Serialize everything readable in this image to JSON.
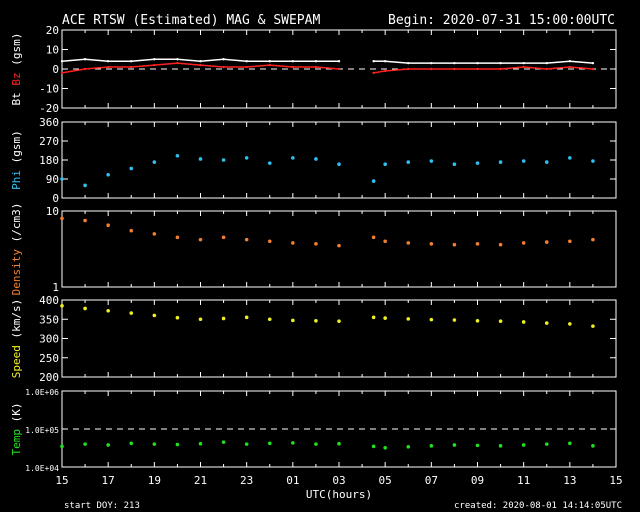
{
  "header": {
    "title": "ACE RTSW (Estimated) MAG & SWEPAM",
    "begin": "Begin: 2020-07-31 15:00:00UTC"
  },
  "footer": {
    "start_doy": "start DOY: 213",
    "created": "created: 2020-08-01 14:14:05UTC",
    "xlabel": "UTC(hours)"
  },
  "colors": {
    "bt": "#ffffff",
    "bz": "#ff2020",
    "phi": "#30c0f0",
    "density": "#f08030",
    "speed": "#f0f020",
    "temp": "#20e020"
  },
  "chart_data": [
    {
      "type": "line",
      "ylabel_parts": [
        "Bt",
        "Bz",
        "(gsm)"
      ],
      "ylim": [
        -20,
        20
      ],
      "yticks": [
        "20",
        "10",
        "0",
        "-10",
        "-20"
      ],
      "dashed_reference": 0,
      "x_hours": [
        0,
        1,
        2,
        3,
        4,
        5,
        6,
        7,
        8,
        9,
        10,
        11,
        12,
        12.5,
        13.5,
        14,
        15,
        16,
        17,
        18,
        19,
        20,
        21,
        22,
        23
      ],
      "series": [
        {
          "name": "Bt",
          "values": [
            4,
            5,
            4,
            4,
            5,
            5,
            4,
            5,
            4,
            4,
            4,
            4,
            4,
            null,
            4,
            4,
            3,
            3,
            3,
            3,
            3,
            3,
            3,
            4,
            3
          ]
        },
        {
          "name": "Bz",
          "values": [
            -2,
            0,
            1,
            1,
            2,
            3,
            2,
            1,
            1,
            2,
            1,
            1,
            0,
            null,
            -2,
            -1,
            0,
            0,
            0,
            0,
            0,
            1,
            0,
            1,
            0
          ]
        }
      ]
    },
    {
      "type": "scatter",
      "ylabel_parts": [
        "Phi",
        "(gsm)"
      ],
      "ylim": [
        0,
        360
      ],
      "yticks": [
        "360",
        "270",
        "180",
        "90",
        "0"
      ],
      "x_hours": [
        0,
        1,
        2,
        3,
        4,
        5,
        6,
        7,
        8,
        9,
        10,
        11,
        12,
        12.5,
        13.5,
        14,
        15,
        16,
        17,
        18,
        19,
        20,
        21,
        22,
        23
      ],
      "series": [
        {
          "name": "Phi",
          "values": [
            90,
            60,
            110,
            140,
            170,
            200,
            185,
            180,
            190,
            165,
            190,
            185,
            160,
            null,
            80,
            160,
            170,
            175,
            160,
            165,
            170,
            175,
            170,
            190,
            175
          ]
        }
      ]
    },
    {
      "type": "scatter",
      "ylabel_parts": [
        "Density",
        "(/cm3)"
      ],
      "scale": "log",
      "ylim": [
        1,
        10
      ],
      "yticks": [
        "10",
        "1"
      ],
      "x_hours": [
        0,
        1,
        2,
        3,
        4,
        5,
        6,
        7,
        8,
        9,
        10,
        11,
        12,
        12.5,
        13.5,
        14,
        15,
        16,
        17,
        18,
        19,
        20,
        21,
        22,
        23
      ],
      "series": [
        {
          "name": "Density",
          "values": [
            8,
            7.5,
            6.5,
            5.5,
            5,
            4.5,
            4.2,
            4.5,
            4.2,
            4,
            3.8,
            3.7,
            3.5,
            null,
            4.5,
            4,
            3.8,
            3.7,
            3.6,
            3.7,
            3.6,
            3.8,
            3.9,
            4,
            4.2
          ]
        }
      ]
    },
    {
      "type": "scatter",
      "ylabel_parts": [
        "Speed",
        "(km/s)"
      ],
      "ylim": [
        200,
        400
      ],
      "yticks": [
        "400",
        "350",
        "300",
        "250",
        "200"
      ],
      "x_hours": [
        0,
        1,
        2,
        3,
        4,
        5,
        6,
        7,
        8,
        9,
        10,
        11,
        12,
        12.5,
        13.5,
        14,
        15,
        16,
        17,
        18,
        19,
        20,
        21,
        22,
        23
      ],
      "series": [
        {
          "name": "Speed",
          "values": [
            385,
            378,
            372,
            366,
            360,
            354,
            350,
            352,
            355,
            350,
            347,
            346,
            345,
            null,
            355,
            353,
            351,
            349,
            348,
            346,
            345,
            343,
            340,
            338,
            332
          ]
        }
      ]
    },
    {
      "type": "scatter",
      "ylabel_parts": [
        "Temp",
        "(K)"
      ],
      "scale": "log",
      "ylim": [
        10000,
        1000000
      ],
      "yticks": [
        "1.0E+06",
        "1.0E+05",
        "1.0E+04"
      ],
      "dashed_reference": 100000,
      "x_hours": [
        0,
        1,
        2,
        3,
        4,
        5,
        6,
        7,
        8,
        9,
        10,
        11,
        12,
        12.5,
        13.5,
        14,
        15,
        16,
        17,
        18,
        19,
        20,
        21,
        22,
        23
      ],
      "series": [
        {
          "name": "Temp",
          "values": [
            35000,
            40000,
            38000,
            42000,
            40000,
            39000,
            41000,
            45000,
            40000,
            42000,
            43000,
            40000,
            41000,
            null,
            35000,
            32000,
            34000,
            36000,
            38000,
            37000,
            36000,
            38000,
            40000,
            42000,
            36000
          ]
        }
      ]
    }
  ],
  "x_axis": {
    "xlim_hours": [
      0,
      24
    ],
    "tick_labels": [
      "15",
      "17",
      "19",
      "21",
      "23",
      "01",
      "03",
      "05",
      "07",
      "09",
      "11",
      "13",
      "15"
    ],
    "tick_hours": [
      0,
      2,
      4,
      6,
      8,
      10,
      12,
      14,
      16,
      18,
      20,
      22,
      24
    ]
  }
}
